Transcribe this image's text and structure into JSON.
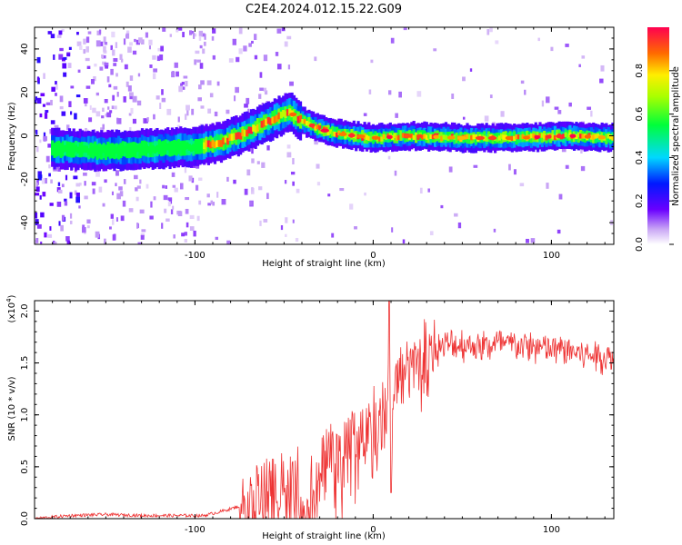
{
  "chart_data": [
    {
      "type": "heatmap",
      "title": "C2E4.2024.012.15.22.G09",
      "xlabel": "Height of straight line (km)",
      "ylabel": "Frequency (Hz)",
      "xlim": [
        -190,
        135
      ],
      "ylim": [
        -50,
        50
      ],
      "xticks": [
        -100,
        0,
        100
      ],
      "xtick_labels": [
        "-100",
        "0",
        "100"
      ],
      "yticks": [
        -40,
        -20,
        0,
        20,
        40
      ],
      "ytick_labels": [
        "-40",
        "-20",
        "0",
        "20",
        "40"
      ],
      "ridge": {
        "description": "dominant frequency ridge vs height",
        "x": [
          -175,
          -150,
          -125,
          -100,
          -85,
          -70,
          -55,
          -47,
          -40,
          -30,
          -20,
          -10,
          0,
          20,
          50,
          80,
          110,
          135
        ],
        "y": [
          -6,
          -7,
          -6,
          -5,
          -3,
          2,
          8,
          11,
          7,
          3,
          1,
          0,
          -1,
          0,
          -1,
          -1,
          0,
          -1
        ]
      },
      "colorbar": {
        "label": "Normalized spectral amplitude",
        "range": [
          0.0,
          1.0
        ],
        "ticks": [
          0.0,
          0.2,
          0.4,
          0.6,
          0.8
        ],
        "tick_labels": [
          "0.0",
          "0.2",
          "0.4",
          "0.6",
          "0.8"
        ]
      }
    },
    {
      "type": "line",
      "xlabel": "Height of straight line (km)",
      "ylabel": "SNR (10 * v/v)",
      "y_multiplier": "(x10",
      "y_multiplier_exp": "4",
      "y_multiplier_close": ")",
      "xlim": [
        -190,
        135
      ],
      "ylim": [
        0,
        2.1
      ],
      "xticks": [
        -100,
        0,
        100
      ],
      "xtick_labels": [
        "-100",
        "0",
        "100"
      ],
      "yticks": [
        0.0,
        0.5,
        1.0,
        1.5,
        2.0
      ],
      "ytick_labels": [
        "0.0",
        "0.5",
        "1.0",
        "1.5",
        "2.0"
      ],
      "color": "#ee3333",
      "series": [
        {
          "name": "SNR",
          "x": [
            -190,
            -170,
            -150,
            -130,
            -110,
            -95,
            -85,
            -75,
            -65,
            -55,
            -45,
            -38,
            -32,
            -26,
            -20,
            -14,
            -8,
            -2,
            4,
            8,
            12,
            18,
            24,
            30,
            36,
            42,
            50,
            60,
            70,
            80,
            90,
            100,
            110,
            120,
            135
          ],
          "y": [
            0.0,
            0.03,
            0.04,
            0.03,
            0.03,
            0.03,
            0.07,
            0.12,
            0.2,
            0.3,
            0.35,
            0.15,
            0.4,
            0.65,
            0.75,
            0.82,
            0.8,
            0.9,
            1.0,
            1.15,
            1.3,
            1.4,
            1.5,
            1.6,
            1.65,
            1.67,
            1.68,
            1.66,
            1.68,
            1.67,
            1.65,
            1.63,
            1.62,
            1.58,
            1.55
          ]
        }
      ]
    }
  ]
}
